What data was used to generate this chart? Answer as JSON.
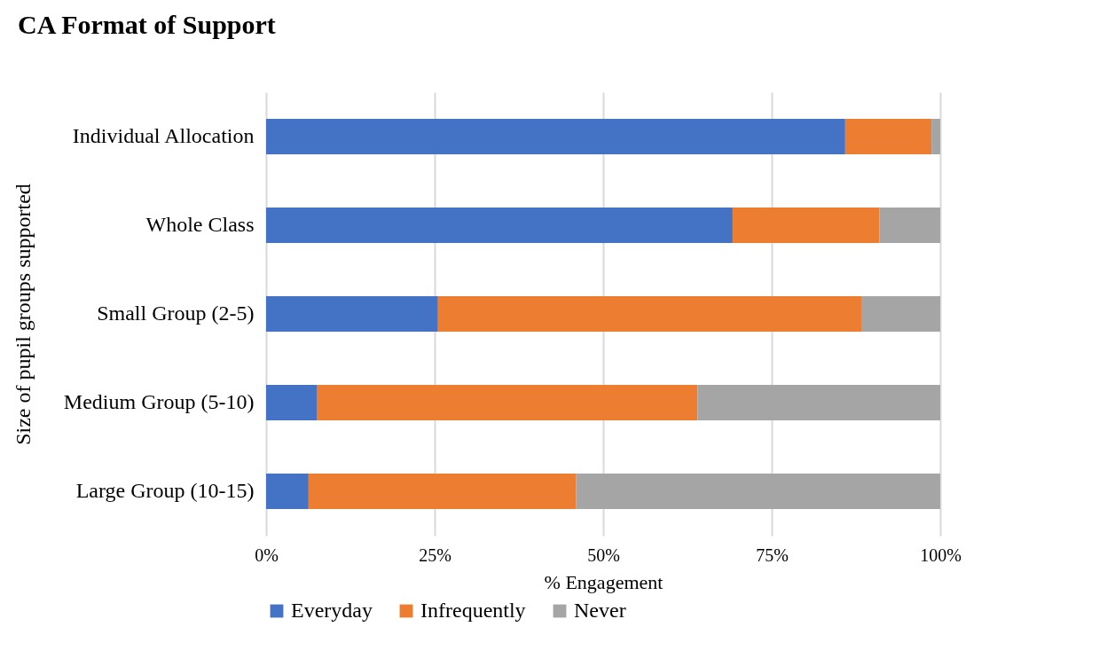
{
  "chart_data": {
    "type": "bar",
    "orientation": "horizontal",
    "stacked": true,
    "title": "CA Format of Support",
    "xlabel": "% Engagement",
    "ylabel": "Size of pupil groups supported",
    "categories": [
      "Individual Allocation",
      "Whole Class",
      "Small Group (2-5)",
      "Medium Group (5-10)",
      "Large Group (10-15)"
    ],
    "series": [
      {
        "name": "Everyday",
        "color": "#4472c4",
        "values": [
          85.9,
          69.2,
          25.5,
          7.5,
          6.3
        ]
      },
      {
        "name": "Infrequently",
        "color": "#ed7d31",
        "values": [
          12.8,
          21.8,
          62.9,
          56.5,
          39.7
        ]
      },
      {
        "name": "Never",
        "color": "#a5a5a5",
        "values": [
          1.3,
          9.0,
          11.6,
          36.0,
          54.0
        ]
      }
    ],
    "xlim": [
      0,
      100
    ],
    "xticks": [
      {
        "value": 0,
        "label": "0%"
      },
      {
        "value": 25,
        "label": "25%"
      },
      {
        "value": 50,
        "label": "50%"
      },
      {
        "value": 75,
        "label": "75%"
      },
      {
        "value": 100,
        "label": "100%"
      }
    ],
    "grid": "x",
    "legend": "bottom"
  }
}
